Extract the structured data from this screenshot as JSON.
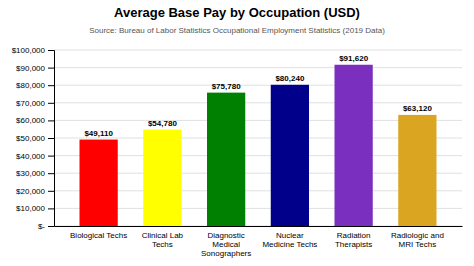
{
  "chart_data": {
    "type": "bar",
    "title": "Average Base Pay by Occupation (USD)",
    "subtitle": "Source: Bureau of Labor Statistics Occupational Employment Statistics (2019 Data)",
    "categories": [
      "Biological Techs",
      "Clinical Lab\nTechs",
      "Diagnostic\nMedical\nSonographers",
      "Nuclear\nMedicine Techs",
      "Radiation\nTherapists",
      "Radiologic and\nMRI Techs"
    ],
    "values": [
      49110,
      54780,
      75780,
      80240,
      91620,
      63120
    ],
    "value_labels": [
      "$49,110",
      "$54,780",
      "$75,780",
      "$80,240",
      "$91,620",
      "$63,120"
    ],
    "colors": [
      "#ff0000",
      "#ffff00",
      "#008000",
      "#00008b",
      "#7b2fbe",
      "#daa520"
    ],
    "ylim": [
      0,
      100000
    ],
    "yticks": [
      {
        "value": 0,
        "label": "$-"
      },
      {
        "value": 10000,
        "label": "$10,000"
      },
      {
        "value": 20000,
        "label": "$20,000"
      },
      {
        "value": 30000,
        "label": "$30,000"
      },
      {
        "value": 40000,
        "label": "$40,000"
      },
      {
        "value": 50000,
        "label": "$50,000"
      },
      {
        "value": 60000,
        "label": "$60,000"
      },
      {
        "value": 70000,
        "label": "$70,000"
      },
      {
        "value": 80000,
        "label": "$80,000"
      },
      {
        "value": 90000,
        "label": "$90,000"
      },
      {
        "value": 100000,
        "label": "$100,000"
      }
    ],
    "grid": true
  }
}
